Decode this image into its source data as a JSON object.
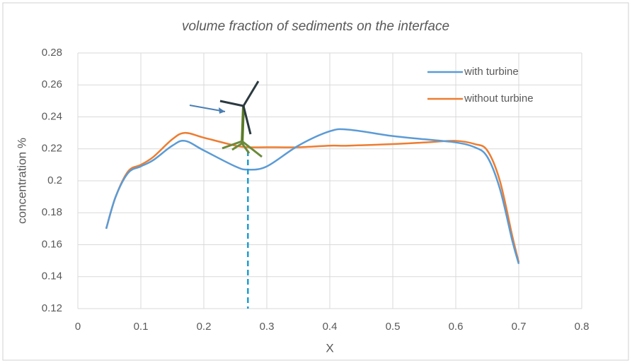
{
  "chart_data": {
    "type": "line",
    "title": "volume fraction of sediments on the interface",
    "x_label": "X",
    "y_label": "concentration %",
    "x": [
      0.045,
      0.06,
      0.08,
      0.1,
      0.12,
      0.15,
      0.17,
      0.2,
      0.25,
      0.27,
      0.3,
      0.35,
      0.4,
      0.43,
      0.5,
      0.55,
      0.6,
      0.63,
      0.65,
      0.67,
      0.69,
      0.7
    ],
    "series": [
      {
        "name": "with turbine",
        "color": "#5b9bd5",
        "values": [
          0.17,
          0.19,
          0.205,
          0.209,
          0.213,
          0.222,
          0.225,
          0.219,
          0.209,
          0.207,
          0.209,
          0.222,
          0.231,
          0.232,
          0.228,
          0.226,
          0.224,
          0.221,
          0.215,
          0.195,
          0.162,
          0.148
        ]
      },
      {
        "name": "without turbine",
        "color": "#ed7d31",
        "values": [
          0.17,
          0.19,
          0.206,
          0.21,
          0.215,
          0.226,
          0.23,
          0.227,
          0.222,
          0.221,
          0.221,
          0.221,
          0.222,
          0.222,
          0.223,
          0.224,
          0.225,
          0.223,
          0.219,
          0.2,
          0.165,
          0.149
        ]
      }
    ],
    "reference_x": 0.27,
    "xlim": [
      0,
      0.8
    ],
    "xticks": [
      0,
      0.1,
      0.2,
      0.3,
      0.4,
      0.5,
      0.6,
      0.7,
      0.8
    ],
    "ylim": [
      0.12,
      0.28
    ],
    "yticks": [
      0.12,
      0.14,
      0.16,
      0.18,
      0.2,
      0.22,
      0.24,
      0.26,
      0.28
    ],
    "grid": true,
    "legend": "top-right"
  }
}
